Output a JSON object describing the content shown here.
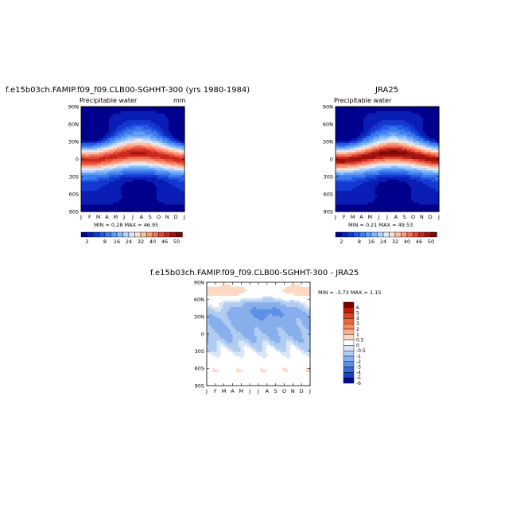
{
  "chart_data": [
    {
      "type": "heatmap",
      "title": "f.e15b03ch.FAMIP.f09_f09.CLB00-SGHHT-300 (yrs 1980-1984)",
      "subtitle_left": "Precipitable water",
      "subtitle_right": "mm",
      "x_ticks": [
        "J",
        "F",
        "M",
        "A",
        "M",
        "J",
        "J",
        "A",
        "S",
        "O",
        "N",
        "D",
        "J"
      ],
      "y_ticks": [
        "90N",
        "60N",
        "30N",
        "0",
        "30S",
        "60S",
        "90S"
      ],
      "min_text": "MIN =",
      "min": "0.28",
      "max_text": "MAX =",
      "max": "46.95",
      "colorbar_labels": [
        "2",
        "8",
        "16",
        "24",
        "32",
        "40",
        "46",
        "50"
      ],
      "levels": [
        2,
        4,
        6,
        8,
        12,
        16,
        20,
        24,
        28,
        32,
        36,
        40,
        44,
        46,
        48,
        50
      ]
    },
    {
      "type": "heatmap",
      "title": "JRA25",
      "subtitle_left": "Precipitable water",
      "subtitle_right": "",
      "x_ticks": [
        "J",
        "F",
        "M",
        "A",
        "M",
        "J",
        "J",
        "A",
        "S",
        "O",
        "N",
        "D",
        "J"
      ],
      "y_ticks": [
        "90N",
        "60N",
        "30N",
        "0",
        "30S",
        "60S",
        "90S"
      ],
      "min_text": "MIN =",
      "min": "0.21",
      "max_text": "MAX =",
      "max": "49.53",
      "colorbar_labels": [
        "2",
        "8",
        "16",
        "24",
        "32",
        "40",
        "46",
        "50"
      ],
      "levels": [
        2,
        4,
        6,
        8,
        12,
        16,
        20,
        24,
        28,
        32,
        36,
        40,
        44,
        46,
        48,
        50
      ]
    },
    {
      "type": "heatmap",
      "title": "f.e15b03ch.FAMIP.f09_f09.CLB00-SGHHT-300 - JRA25",
      "x_ticks": [
        "J",
        "F",
        "M",
        "A",
        "M",
        "J",
        "J",
        "A",
        "S",
        "O",
        "N",
        "D",
        "J"
      ],
      "y_ticks": [
        "90N",
        "60N",
        "30N",
        "0",
        "30S",
        "60S",
        "90S"
      ],
      "min_text": "MIN =",
      "min": "-3.73",
      "max_text": "MAX =",
      "max": "1.15",
      "colorbar_labels": [
        "6",
        "5",
        "4",
        "3",
        "2",
        "1",
        "0.5",
        "0",
        "-0.5",
        "-1",
        "-2",
        "-3",
        "-4",
        "-5",
        "-6"
      ],
      "levels": [
        6,
        5,
        4,
        3,
        2,
        1,
        0.5,
        0,
        -0.5,
        -1,
        -2,
        -3,
        -4,
        -5,
        -6
      ]
    }
  ]
}
